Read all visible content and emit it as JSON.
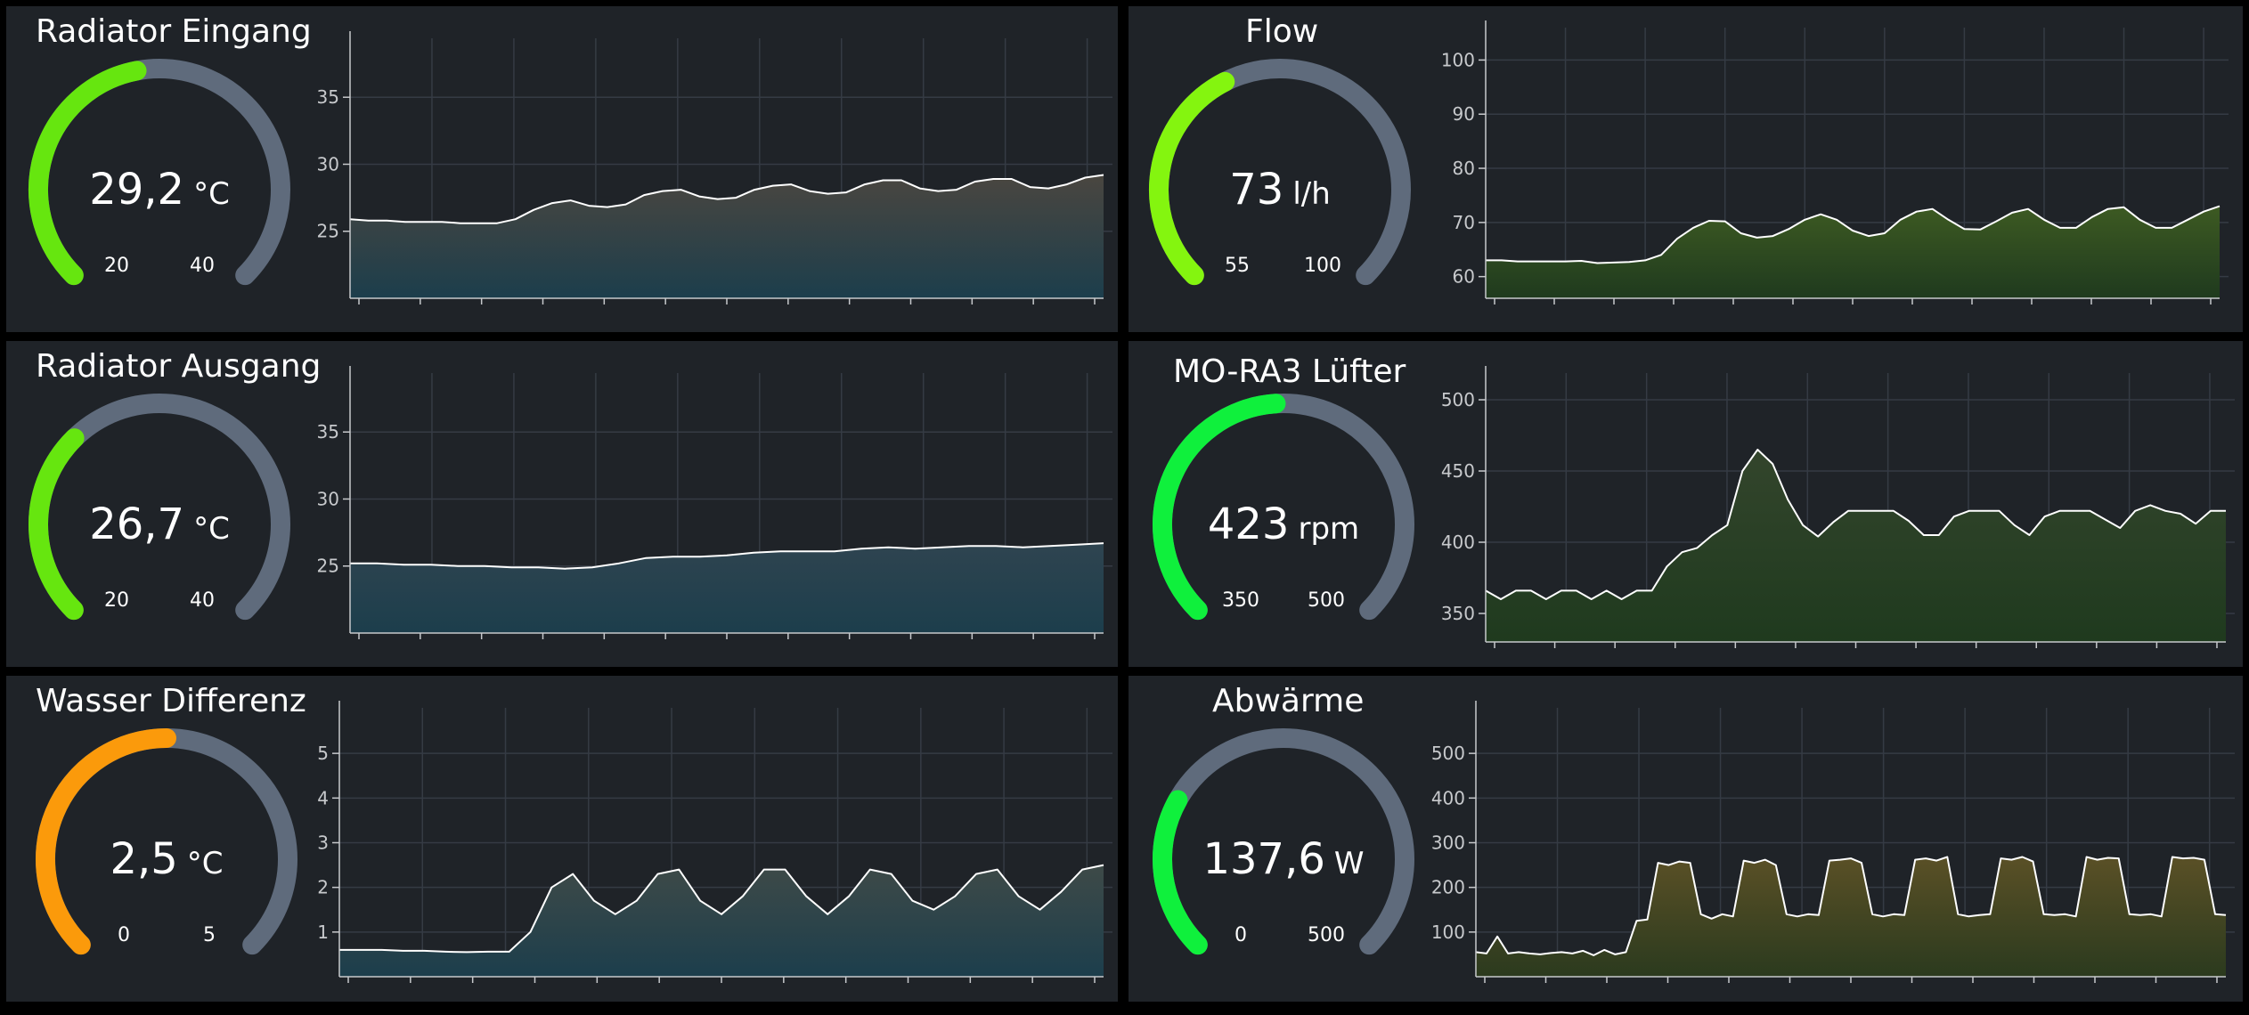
{
  "colors": {
    "background": "#000000",
    "panel": "#1f2328",
    "gauge_track": "#5f6b7c",
    "grid": "#353b44",
    "axis": "#c7c9cc",
    "line": "#ffffff"
  },
  "panels": [
    {
      "title": "Radiator Eingang",
      "gauge": {
        "value": 29.2,
        "value_text": "29,2",
        "unit": "°C",
        "min": 20,
        "max": 40,
        "min_text": "20",
        "max_text": "40",
        "color": "#66e60f"
      },
      "chart_data": {
        "type": "area",
        "yticks": [
          "25",
          "30",
          "35"
        ],
        "ylim": [
          20,
          39
        ],
        "fill_top": "#4a4640",
        "fill_bottom": "#1c3e4c",
        "values": [
          25.9,
          25.8,
          25.8,
          25.7,
          25.7,
          25.7,
          25.6,
          25.6,
          25.6,
          25.9,
          26.6,
          27.1,
          27.3,
          26.9,
          26.8,
          27.0,
          27.7,
          28.0,
          28.1,
          27.6,
          27.4,
          27.5,
          28.1,
          28.4,
          28.5,
          28.0,
          27.8,
          27.9,
          28.5,
          28.8,
          28.8,
          28.2,
          28.0,
          28.1,
          28.7,
          28.9,
          28.9,
          28.3,
          28.2,
          28.5,
          29.0,
          29.2
        ]
      }
    },
    {
      "title": "Flow",
      "gauge": {
        "value": 73,
        "value_text": "73",
        "unit": "l/h",
        "min": 55,
        "max": 100,
        "min_text": "55",
        "max_text": "100",
        "color": "#84f50f"
      },
      "chart_data": {
        "type": "area",
        "yticks": [
          "60",
          "70",
          "80",
          "90",
          "100"
        ],
        "ylim": [
          56,
          105
        ],
        "fill_top": "#3d5a22",
        "fill_bottom": "#1f3a1e",
        "values": [
          63,
          63,
          62.8,
          62.8,
          62.8,
          62.8,
          62.9,
          62.5,
          62.6,
          62.7,
          63,
          64,
          67,
          69,
          70.3,
          70.2,
          68,
          67.2,
          67.5,
          68.8,
          70.5,
          71.5,
          70.5,
          68.5,
          67.5,
          68,
          70.5,
          72,
          72.5,
          70.5,
          68.8,
          68.7,
          70.2,
          71.8,
          72.5,
          70.5,
          69,
          69,
          71,
          72.5,
          72.8,
          70.5,
          69,
          69,
          70.5,
          72,
          73
        ]
      }
    },
    {
      "title": "Radiator Ausgang",
      "gauge": {
        "value": 26.7,
        "value_text": "26,7",
        "unit": "°C",
        "min": 20,
        "max": 40,
        "min_text": "20",
        "max_text": "40",
        "color": "#66e60f"
      },
      "chart_data": {
        "type": "area",
        "yticks": [
          "25",
          "30",
          "35"
        ],
        "ylim": [
          20,
          39
        ],
        "fill_top": "#2f4450",
        "fill_bottom": "#1c3e4c",
        "values": [
          25.2,
          25.2,
          25.1,
          25.1,
          25.0,
          25.0,
          24.9,
          24.9,
          24.8,
          24.9,
          25.2,
          25.6,
          25.7,
          25.7,
          25.8,
          26.0,
          26.1,
          26.1,
          26.1,
          26.3,
          26.4,
          26.3,
          26.4,
          26.5,
          26.5,
          26.4,
          26.5,
          26.6,
          26.7
        ]
      }
    },
    {
      "title": "MO-RA3 Lüfter",
      "gauge": {
        "value": 423,
        "value_text": "423",
        "unit": "rpm",
        "min": 350,
        "max": 500,
        "min_text": "350",
        "max_text": "500",
        "color": "#0ff03c"
      },
      "chart_data": {
        "type": "area",
        "yticks": [
          "350",
          "400",
          "450",
          "500"
        ],
        "ylim": [
          330,
          515
        ],
        "fill_top": "#33452c",
        "fill_bottom": "#1f3a1e",
        "values": [
          366,
          360,
          366,
          366,
          360,
          366,
          366,
          360,
          366,
          360,
          366,
          366,
          383,
          393,
          396,
          405,
          412,
          450,
          465,
          455,
          430,
          412,
          404,
          414,
          422,
          422,
          422,
          422,
          415,
          405,
          405,
          418,
          422,
          422,
          422,
          412,
          405,
          418,
          422,
          422,
          422,
          416,
          410,
          422,
          426,
          422,
          420,
          413,
          422,
          422
        ]
      }
    },
    {
      "title": "Wasser Differenz",
      "gauge": {
        "value": 2.5,
        "value_text": "2,5",
        "unit": "°C",
        "min": 0,
        "max": 5,
        "min_text": "0",
        "max_text": "5",
        "color": "#fb9a0b"
      },
      "chart_data": {
        "type": "area",
        "yticks": [
          "1",
          "2",
          "3",
          "4",
          "5"
        ],
        "ylim": [
          0,
          5.9
        ],
        "fill_top": "#3e4a48",
        "fill_bottom": "#1c3e4c",
        "values": [
          0.6,
          0.6,
          0.6,
          0.58,
          0.58,
          0.56,
          0.55,
          0.56,
          0.56,
          1.0,
          2.0,
          2.3,
          1.7,
          1.4,
          1.7,
          2.3,
          2.4,
          1.7,
          1.4,
          1.8,
          2.4,
          2.4,
          1.8,
          1.4,
          1.8,
          2.4,
          2.3,
          1.7,
          1.5,
          1.8,
          2.3,
          2.4,
          1.8,
          1.5,
          1.9,
          2.4,
          2.5
        ]
      }
    },
    {
      "title": "Abwärme",
      "gauge": {
        "value": 137.6,
        "value_text": "137,6",
        "unit": "W",
        "min": 0,
        "max": 500,
        "min_text": "0",
        "max_text": "500",
        "color": "#0ff03c"
      },
      "chart_data": {
        "type": "area",
        "yticks": [
          "100",
          "200",
          "300",
          "400",
          "500"
        ],
        "ylim": [
          0,
          590
        ],
        "fill_top": "#5a5026",
        "fill_bottom": "#2b3a1e",
        "values": [
          55,
          52,
          90,
          52,
          55,
          52,
          50,
          53,
          55,
          52,
          58,
          48,
          60,
          50,
          55,
          125,
          128,
          255,
          250,
          258,
          255,
          140,
          130,
          140,
          135,
          260,
          255,
          262,
          250,
          140,
          135,
          140,
          138,
          260,
          262,
          265,
          255,
          140,
          135,
          140,
          138,
          262,
          265,
          260,
          268,
          140,
          135,
          138,
          140,
          265,
          262,
          268,
          258,
          140,
          138,
          140,
          135,
          268,
          262,
          266,
          265,
          140,
          138,
          140,
          135,
          268,
          265,
          266,
          262,
          140,
          138
        ]
      }
    }
  ]
}
